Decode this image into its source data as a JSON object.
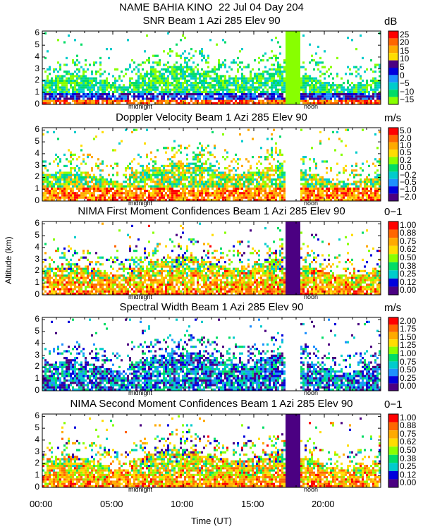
{
  "title": "NAME BAHIA KINO  22 Jul 04 Day 204",
  "xlabel": "Time (UT)",
  "ylabel": "Altitude (km)",
  "x_ticks": [
    "00:00",
    "05:00",
    "10:00",
    "15:00",
    "20:00"
  ],
  "x_markers": {
    "midnight": "midnight",
    "noon": "noon"
  },
  "y_ticks": [
    "0",
    "1",
    "2",
    "3",
    "4",
    "5",
    "6"
  ],
  "chart_data": [
    {
      "type": "heatmap",
      "title": "SNR Beam 1 Azi 285 Elev 90",
      "unit": "dB",
      "xlabel": "Time (UT)",
      "ylabel": "Altitude (km)",
      "xlim": [
        0,
        24
      ],
      "ylim": [
        0,
        6.2
      ],
      "colorbar_labels": [
        "25",
        "20",
        "15",
        "10",
        "5",
        "0",
        "−5",
        "−10",
        "−15"
      ],
      "colors": [
        "#ff0000",
        "#ff6600",
        "#ffaa00",
        "#ffdd00",
        "#4b0082",
        "#0000dd",
        "#1e90ff",
        "#00cccc",
        "#00dd66",
        "#88ff00"
      ]
    },
    {
      "type": "heatmap",
      "title": "Doppler Velocity Beam 1 Azi 285 Elev 90",
      "unit": "m/s",
      "xlabel": "Time (UT)",
      "ylabel": "Altitude (km)",
      "xlim": [
        0,
        24
      ],
      "ylim": [
        0,
        6.2
      ],
      "colorbar_labels": [
        "5.0",
        "2.0",
        "1.0",
        "0.5",
        "0.2",
        "0.0",
        "−0.2",
        "−0.5",
        "−1.0",
        "−2.0"
      ],
      "colors": [
        "#ff0000",
        "#ff6600",
        "#ffaa00",
        "#ffdd00",
        "#88ff00",
        "#00dd66",
        "#00cccc",
        "#1e90ff",
        "#0000dd",
        "#4b0082"
      ]
    },
    {
      "type": "heatmap",
      "title": "NIMA First Moment Confidences Beam 1 Azi 285 Elev 90",
      "unit": "0−1",
      "xlabel": "Time (UT)",
      "ylabel": "Altitude (km)",
      "xlim": [
        0,
        24
      ],
      "ylim": [
        0,
        6.2
      ],
      "colorbar_labels": [
        "1.00",
        "0.88",
        "0.75",
        "0.62",
        "0.50",
        "0.38",
        "0.25",
        "0.12",
        "0.00"
      ],
      "colors": [
        "#ff0000",
        "#ff6600",
        "#ffaa00",
        "#ffdd00",
        "#88ff00",
        "#00dd66",
        "#00cccc",
        "#0000dd",
        "#4b0082"
      ]
    },
    {
      "type": "heatmap",
      "title": "Spectral Width Beam 1 Azi 285 Elev 90",
      "unit": "m/s",
      "xlabel": "Time (UT)",
      "ylabel": "Altitude (km)",
      "xlim": [
        0,
        24
      ],
      "ylim": [
        0,
        6.2
      ],
      "colorbar_labels": [
        "2.00",
        "1.75",
        "1.50",
        "1.25",
        "1.00",
        "0.75",
        "0.50",
        "0.25",
        "0.00"
      ],
      "colors": [
        "#ff0000",
        "#ff6600",
        "#ffaa00",
        "#ffdd00",
        "#88ff00",
        "#00dd66",
        "#00cccc",
        "#1e90ff",
        "#0000dd",
        "#4b0082"
      ]
    },
    {
      "type": "heatmap",
      "title": "NIMA Second Moment Confidences Beam 1 Azi 285 Elev 90",
      "unit": "0−1",
      "xlabel": "Time (UT)",
      "ylabel": "Altitude (km)",
      "xlim": [
        0,
        24
      ],
      "ylim": [
        0,
        6.2
      ],
      "colorbar_labels": [
        "1.00",
        "0.88",
        "0.75",
        "0.62",
        "0.50",
        "0.38",
        "0.25",
        "0.12",
        "0.00"
      ],
      "colors": [
        "#ff0000",
        "#ff6600",
        "#ffaa00",
        "#ffdd00",
        "#88ff00",
        "#00dd66",
        "#00cccc",
        "#0000dd",
        "#4b0082"
      ]
    }
  ]
}
